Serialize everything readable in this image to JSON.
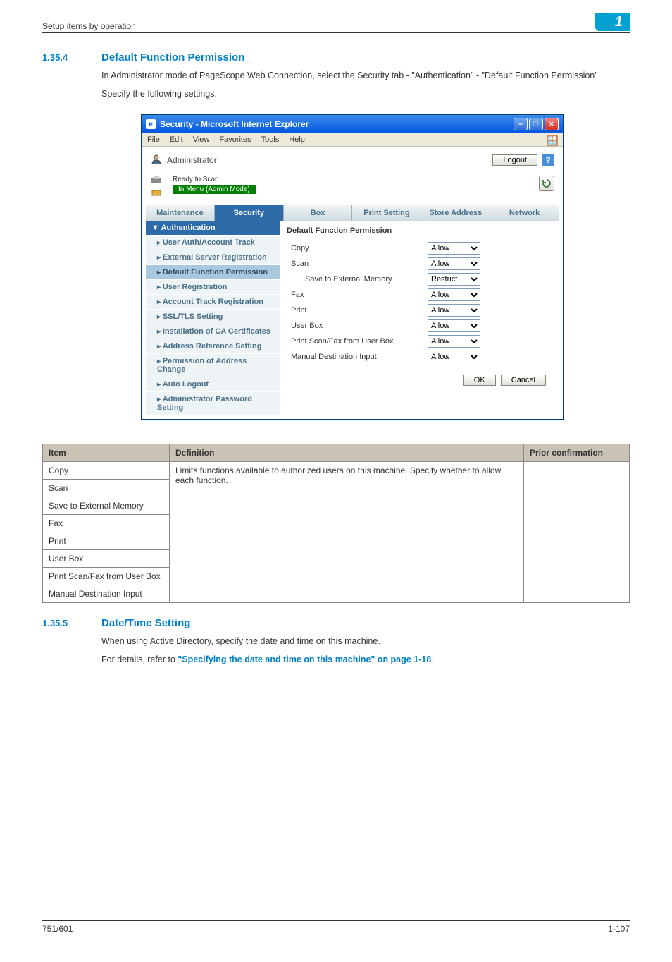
{
  "header": {
    "left": "Setup items by operation",
    "badge": "1"
  },
  "sec1": {
    "num": "1.35.4",
    "title": "Default Function Permission",
    "p1": "In Administrator mode of PageScope Web Connection, select the Security tab - \"Authentication\" - \"Default Function Permission\".",
    "p2": "Specify the following settings."
  },
  "ie": {
    "title": "Security - Microsoft Internet Explorer",
    "menu": [
      "File",
      "Edit",
      "View",
      "Favorites",
      "Tools",
      "Help"
    ],
    "admin_label": "Administrator",
    "logout": "Logout",
    "status_ready": "Ready to Scan",
    "status_mode": "In Menu (Admin Mode)",
    "tabs": [
      "Maintenance",
      "Security",
      "Box",
      "Print Setting",
      "Store Address",
      "Network"
    ],
    "active_tab_index": 1,
    "sidebar": {
      "header": "Authentication",
      "items": [
        "User Auth/Account Track",
        "External Server Registration",
        "Default Function Permission",
        "User Registration",
        "Account Track Registration",
        "SSL/TLS Setting",
        "Installation of CA Certificates",
        "Address Reference Setting",
        "Permission of Address Change",
        "Auto Logout",
        "Administrator Password Setting"
      ],
      "active_index": 2
    },
    "pane": {
      "title": "Default Function Permission",
      "rows": [
        {
          "label": "Copy",
          "value": "Allow",
          "indent": false
        },
        {
          "label": "Scan",
          "value": "Allow",
          "indent": false
        },
        {
          "label": "Save to External Memory",
          "value": "Restrict",
          "indent": true
        },
        {
          "label": "Fax",
          "value": "Allow",
          "indent": false
        },
        {
          "label": "Print",
          "value": "Allow",
          "indent": false
        },
        {
          "label": "User Box",
          "value": "Allow",
          "indent": false
        },
        {
          "label": "Print Scan/Fax from User Box",
          "value": "Allow",
          "indent": false
        },
        {
          "label": "Manual Destination Input",
          "value": "Allow",
          "indent": false
        }
      ],
      "options": [
        "Allow",
        "Restrict"
      ],
      "ok": "OK",
      "cancel": "Cancel"
    }
  },
  "def_table": {
    "h_item": "Item",
    "h_def": "Definition",
    "h_prior": "Prior confirmation",
    "def_text": "Limits functions available to authorized users on this machine. Specify whether to allow each function.",
    "items": [
      "Copy",
      "Scan",
      "Save to External Memory",
      "Fax",
      "Print",
      "User Box",
      "Print Scan/Fax from User Box",
      "Manual Destination Input"
    ]
  },
  "sec2": {
    "num": "1.35.5",
    "title": "Date/Time Setting",
    "p1": "When using Active Directory, specify the date and time on this machine.",
    "p2a": "For details, refer to ",
    "p2b": "\"Specifying the date and time on this machine\" on page 1-18",
    "p2c": "."
  },
  "footer": {
    "left": "751/601",
    "right": "1-107"
  }
}
